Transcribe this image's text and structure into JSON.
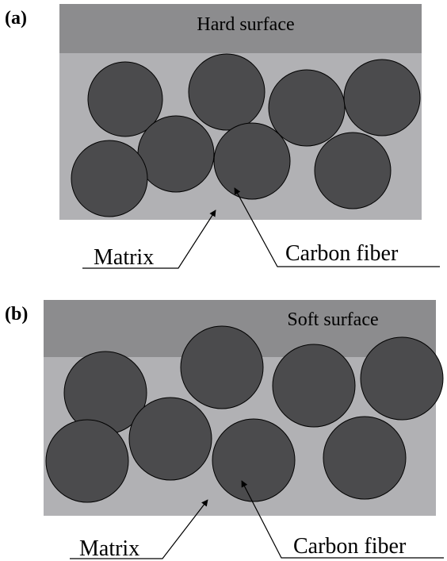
{
  "panels": [
    {
      "label": "(a)",
      "surface": "Hard surface",
      "matrix": "Matrix",
      "fiber": "Carbon fiber"
    },
    {
      "label": "(b)",
      "surface": "Soft surface",
      "matrix": "Matrix",
      "fiber": "Carbon fiber"
    }
  ]
}
